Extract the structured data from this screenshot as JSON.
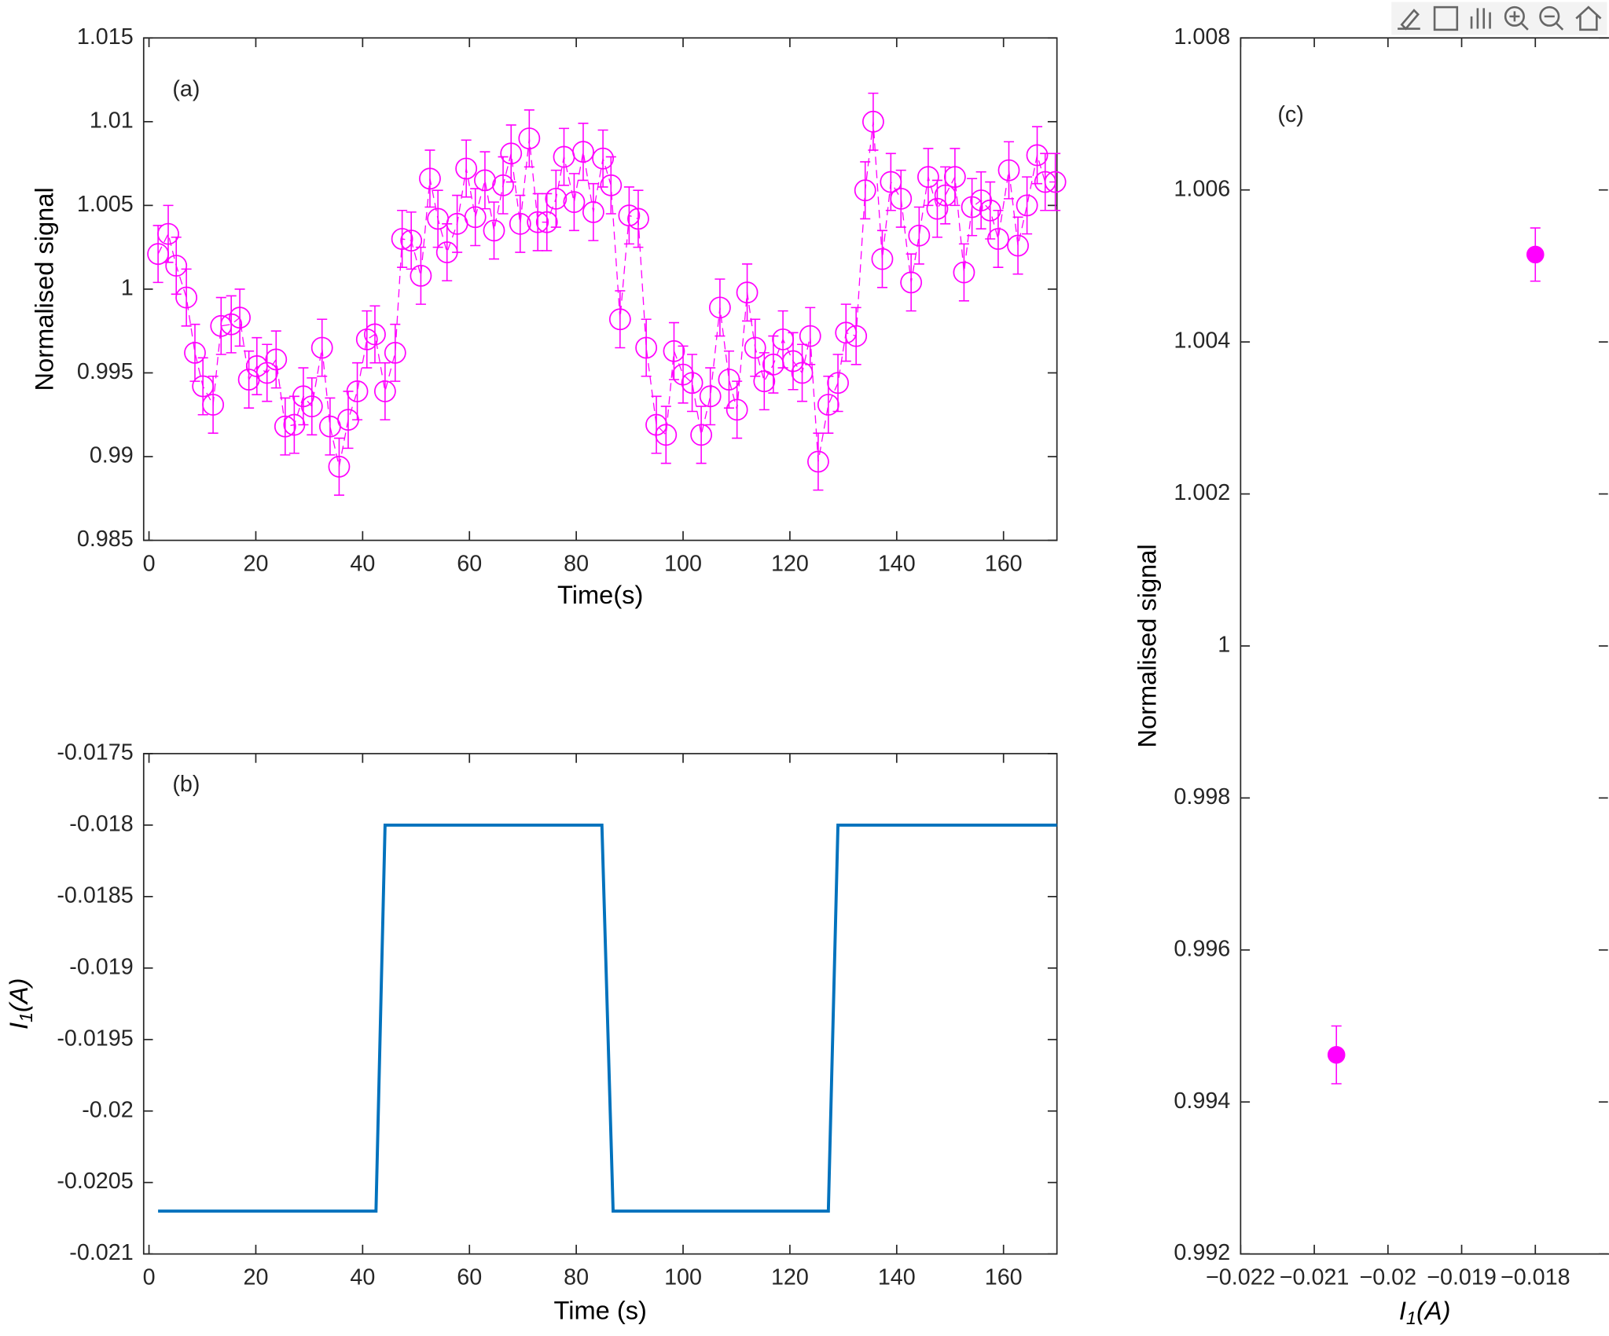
{
  "chart_data": [
    {
      "type": "scatter",
      "marker": "open-circle",
      "line_style": "dashed",
      "color": "#ff00ff",
      "annotation": "(a)",
      "xlabel": "Time(s)",
      "ylabel": "Normalised signal",
      "xlim": [
        -1,
        170
      ],
      "xticks": [
        0,
        20,
        40,
        60,
        80,
        100,
        120,
        140,
        160
      ],
      "ylim": [
        0.985,
        1.015
      ],
      "yticks": [
        0.985,
        0.99,
        0.995,
        1,
        1.005,
        1.01,
        1.015
      ],
      "error": 0.0017,
      "x": [
        1.7,
        3.6,
        5.1,
        7.0,
        8.6,
        10.1,
        12.0,
        13.5,
        15.4,
        17.0,
        18.7,
        20.2,
        22.1,
        23.8,
        25.5,
        27.2,
        28.9,
        30.5,
        32.4,
        33.9,
        35.6,
        37.3,
        39.0,
        40.8,
        42.3,
        44.2,
        46.1,
        47.4,
        49.1,
        50.9,
        52.6,
        54.1,
        55.8,
        57.7,
        59.4,
        61.1,
        62.9,
        64.6,
        66.3,
        67.8,
        69.5,
        71.2,
        72.8,
        74.5,
        76.2,
        77.7,
        79.6,
        81.3,
        83.2,
        85.0,
        86.5,
        88.2,
        89.9,
        91.6,
        93.1,
        95.0,
        96.8,
        98.3,
        100.0,
        101.7,
        103.4,
        105.1,
        106.9,
        108.6,
        110.1,
        112.0,
        113.5,
        115.2,
        116.9,
        118.7,
        120.6,
        122.3,
        123.8,
        125.3,
        127.2,
        129.0,
        130.5,
        132.4,
        134.1,
        135.6,
        137.3,
        138.9,
        140.8,
        142.7,
        144.2,
        145.9,
        147.6,
        149.1,
        150.9,
        152.6,
        154.1,
        155.8,
        157.5,
        159.0,
        161.0,
        162.7,
        164.4,
        166.3,
        167.8,
        169.7
      ],
      "values": [
        1.0021,
        1.0033,
        1.0014,
        0.9995,
        0.9962,
        0.9942,
        0.9931,
        0.9978,
        0.9979,
        0.9983,
        0.9946,
        0.9954,
        0.995,
        0.9958,
        0.9918,
        0.9919,
        0.9936,
        0.993,
        0.9965,
        0.9918,
        0.9894,
        0.9922,
        0.9939,
        0.997,
        0.9973,
        0.9939,
        0.9962,
        1.003,
        1.0029,
        1.0008,
        1.0066,
        1.0042,
        1.0022,
        1.0039,
        1.0072,
        1.0043,
        1.0065,
        1.0035,
        1.0062,
        1.0081,
        1.0039,
        1.009,
        1.004,
        1.004,
        1.0054,
        1.0079,
        1.0052,
        1.0082,
        1.0046,
        1.0078,
        1.0062,
        0.9982,
        1.0044,
        1.0042,
        0.9965,
        0.9919,
        0.9913,
        0.9963,
        0.9949,
        0.9944,
        0.9913,
        0.9936,
        0.9989,
        0.9946,
        0.9928,
        0.9998,
        0.9965,
        0.9945,
        0.9955,
        0.997,
        0.9957,
        0.995,
        0.9972,
        0.9897,
        0.9931,
        0.9944,
        0.9974,
        0.9972,
        1.0059,
        1.01,
        1.0018,
        1.0064,
        1.0054,
        1.0004,
        1.0032,
        1.0067,
        1.0048,
        1.0056,
        1.0067,
        1.001,
        1.0049,
        1.0053,
        1.0047,
        1.003,
        1.0071,
        1.0026,
        1.005,
        1.008,
        1.0064,
        1.0064
      ]
    },
    {
      "type": "line",
      "color": "#0072bd",
      "annotation": "(b)",
      "xlabel": "Time (s)",
      "ylabel": [
        "I",
        "1",
        "(A)"
      ],
      "xlim": [
        -1,
        170
      ],
      "xticks": [
        0,
        20,
        40,
        60,
        80,
        100,
        120,
        140,
        160
      ],
      "ylim": [
        -0.021,
        -0.0175
      ],
      "yticks": [
        -0.021,
        -0.0205,
        -0.02,
        -0.0195,
        -0.019,
        -0.0185,
        -0.018,
        -0.0175
      ],
      "x": [
        1.7,
        42.5,
        44.2,
        84.8,
        86.9,
        127.2,
        129.0,
        170
      ],
      "values": [
        -0.0207,
        -0.0207,
        -0.018,
        -0.018,
        -0.0207,
        -0.0207,
        -0.018,
        -0.018
      ]
    },
    {
      "type": "scatter",
      "marker": "filled-circle",
      "color": "#ff00ff",
      "annotation": "(c)",
      "xlabel": [
        "I",
        "1",
        "(A)"
      ],
      "ylabel": "Normalised signal",
      "xlim": [
        -0.022,
        -0.017
      ],
      "xticks": [
        {
          "value": -0.022,
          "label": "−0.022"
        },
        {
          "value": -0.021,
          "label": "−0.021"
        },
        {
          "value": -0.02,
          "label": "−0.02"
        },
        {
          "value": -0.019,
          "label": "−0.019"
        },
        {
          "value": -0.018,
          "label": "−0.018"
        }
      ],
      "ylim": [
        0.992,
        1.008
      ],
      "yticks": [
        0.992,
        0.994,
        0.996,
        0.998,
        1,
        1.002,
        1.004,
        1.006,
        1.008
      ],
      "x": [
        -0.0207,
        -0.018
      ],
      "values": [
        0.99462,
        1.00515
      ],
      "errors": [
        0.00038,
        0.00035
      ]
    }
  ]
}
